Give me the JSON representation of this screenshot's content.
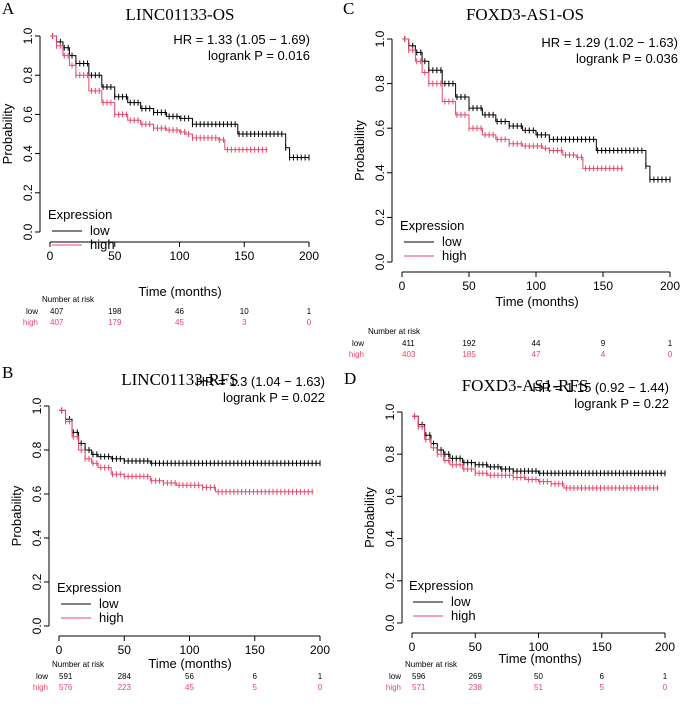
{
  "colors": {
    "low": "#000000",
    "high": "#e8466a",
    "axis": "#000000"
  },
  "chart_data": [
    {
      "panel_letter": "A",
      "type": "line",
      "title": "LINC01133-OS",
      "hr_text": "HR = 1.33 (1.05 − 1.69)",
      "p_text": "logrank P = 0.016",
      "xlabel": "Time (months)",
      "ylabel": "Probability",
      "xlim": [
        0,
        200
      ],
      "ylim": [
        0,
        1
      ],
      "xticks": [
        0,
        50,
        100,
        150,
        200
      ],
      "yticks": [
        0.0,
        0.2,
        0.4,
        0.6,
        0.8,
        1.0
      ],
      "legend_title": "Expression",
      "series": [
        {
          "name": "low",
          "color_key": "low",
          "x": [
            0,
            5,
            10,
            15,
            20,
            30,
            40,
            50,
            60,
            70,
            80,
            90,
            100,
            110,
            120,
            130,
            140,
            145,
            150,
            160,
            170,
            180,
            182,
            185,
            190,
            200
          ],
          "y": [
            1.0,
            0.97,
            0.94,
            0.9,
            0.86,
            0.8,
            0.74,
            0.69,
            0.66,
            0.63,
            0.61,
            0.59,
            0.58,
            0.55,
            0.55,
            0.55,
            0.55,
            0.5,
            0.5,
            0.5,
            0.5,
            0.5,
            0.43,
            0.38,
            0.38,
            0.38
          ]
        },
        {
          "name": "high",
          "color_key": "high",
          "x": [
            0,
            5,
            10,
            15,
            20,
            30,
            40,
            50,
            60,
            70,
            80,
            90,
            100,
            105,
            110,
            120,
            130,
            135,
            140,
            150,
            160,
            168
          ],
          "y": [
            1.0,
            0.95,
            0.9,
            0.85,
            0.8,
            0.72,
            0.66,
            0.6,
            0.57,
            0.55,
            0.53,
            0.52,
            0.51,
            0.5,
            0.48,
            0.48,
            0.47,
            0.42,
            0.42,
            0.42,
            0.42,
            0.42
          ]
        }
      ],
      "risk_label": "Number at risk",
      "risk_times": [
        0,
        50,
        100,
        150,
        200
      ],
      "risk_table": [
        {
          "group": "low",
          "color_key": "low",
          "counts": [
            "407",
            "198",
            "46",
            "10",
            "1"
          ]
        },
        {
          "group": "high",
          "color_key": "high",
          "counts": [
            "407",
            "179",
            "45",
            "3",
            "0"
          ]
        }
      ]
    },
    {
      "panel_letter": "C",
      "type": "line",
      "title": "FOXD3-AS1-OS",
      "hr_text": "HR = 1.29 (1.02 − 1.63)",
      "p_text": "logrank P = 0.036",
      "xlabel": "Time (months)",
      "ylabel": "Probability",
      "xlim": [
        0,
        200
      ],
      "ylim": [
        0,
        1
      ],
      "xticks": [
        0,
        50,
        100,
        150,
        200
      ],
      "yticks": [
        0.0,
        0.2,
        0.4,
        0.6,
        0.8,
        1.0
      ],
      "legend_title": "Expression",
      "series": [
        {
          "name": "low",
          "color_key": "low",
          "x": [
            0,
            5,
            10,
            15,
            20,
            30,
            40,
            50,
            60,
            70,
            80,
            90,
            100,
            110,
            120,
            130,
            140,
            145,
            150,
            160,
            170,
            180,
            182,
            185,
            190,
            200
          ],
          "y": [
            1.0,
            0.97,
            0.94,
            0.9,
            0.86,
            0.8,
            0.74,
            0.69,
            0.66,
            0.63,
            0.61,
            0.59,
            0.57,
            0.55,
            0.55,
            0.55,
            0.55,
            0.5,
            0.5,
            0.5,
            0.5,
            0.5,
            0.43,
            0.37,
            0.37,
            0.37
          ]
        },
        {
          "name": "high",
          "color_key": "high",
          "x": [
            0,
            5,
            10,
            15,
            20,
            30,
            40,
            50,
            60,
            70,
            80,
            90,
            100,
            105,
            110,
            120,
            130,
            135,
            140,
            150,
            160,
            165
          ],
          "y": [
            1.0,
            0.95,
            0.9,
            0.85,
            0.8,
            0.72,
            0.66,
            0.6,
            0.57,
            0.55,
            0.53,
            0.52,
            0.52,
            0.51,
            0.5,
            0.48,
            0.47,
            0.42,
            0.42,
            0.42,
            0.42,
            0.42
          ]
        }
      ],
      "risk_label": "Number at risk",
      "risk_times": [
        0,
        50,
        100,
        150,
        200
      ],
      "risk_table": [
        {
          "group": "low",
          "color_key": "low",
          "counts": [
            "411",
            "192",
            "44",
            "9",
            "1"
          ]
        },
        {
          "group": "high",
          "color_key": "high",
          "counts": [
            "403",
            "185",
            "47",
            "4",
            "0"
          ]
        }
      ]
    },
    {
      "panel_letter": "B",
      "type": "line",
      "title": "LINC01133-RFS",
      "hr_text": "HR = 1.3 (1.04 − 1.63)",
      "p_text": "logrank P = 0.022",
      "xlabel": "Time (months)",
      "ylabel": "Probability",
      "xlim": [
        0,
        200
      ],
      "ylim": [
        0,
        1
      ],
      "xticks": [
        0,
        50,
        100,
        150,
        200
      ],
      "yticks": [
        0.0,
        0.2,
        0.4,
        0.6,
        0.8,
        1.0
      ],
      "legend_title": "Expression",
      "series": [
        {
          "name": "low",
          "color_key": "low",
          "x": [
            0,
            5,
            10,
            15,
            20,
            25,
            30,
            40,
            50,
            60,
            70,
            80,
            100,
            120,
            150,
            200
          ],
          "y": [
            0.98,
            0.94,
            0.88,
            0.83,
            0.8,
            0.78,
            0.77,
            0.76,
            0.75,
            0.75,
            0.74,
            0.74,
            0.74,
            0.74,
            0.74,
            0.74
          ]
        },
        {
          "name": "high",
          "color_key": "high",
          "x": [
            0,
            5,
            10,
            15,
            20,
            25,
            30,
            40,
            50,
            60,
            70,
            80,
            90,
            100,
            110,
            120,
            150,
            195
          ],
          "y": [
            0.98,
            0.93,
            0.86,
            0.8,
            0.76,
            0.74,
            0.72,
            0.69,
            0.68,
            0.68,
            0.66,
            0.65,
            0.64,
            0.64,
            0.63,
            0.61,
            0.61,
            0.61
          ]
        }
      ],
      "risk_label": "Number at risk",
      "risk_times": [
        0,
        50,
        100,
        150,
        200
      ],
      "risk_table": [
        {
          "group": "low",
          "color_key": "low",
          "counts": [
            "591",
            "284",
            "56",
            "6",
            "1"
          ]
        },
        {
          "group": "high",
          "color_key": "high",
          "counts": [
            "576",
            "223",
            "45",
            "5",
            "0"
          ]
        }
      ]
    },
    {
      "panel_letter": "D",
      "type": "line",
      "title": "FOXD3-AS1-RFS",
      "hr_text": "HR = 1.15 (0.92 − 1.44)",
      "p_text": "logrank P = 0.22",
      "xlabel": "Time (months)",
      "ylabel": "Probability",
      "xlim": [
        0,
        200
      ],
      "ylim": [
        0,
        1
      ],
      "xticks": [
        0,
        50,
        100,
        150,
        200
      ],
      "yticks": [
        0.0,
        0.2,
        0.4,
        0.6,
        0.8,
        1.0
      ],
      "legend_title": "Expression",
      "series": [
        {
          "name": "low",
          "color_key": "low",
          "x": [
            0,
            5,
            10,
            15,
            20,
            25,
            30,
            40,
            50,
            60,
            70,
            80,
            90,
            100,
            120,
            150,
            200
          ],
          "y": [
            0.98,
            0.94,
            0.89,
            0.85,
            0.82,
            0.8,
            0.78,
            0.76,
            0.75,
            0.74,
            0.73,
            0.72,
            0.72,
            0.71,
            0.71,
            0.71,
            0.71
          ]
        },
        {
          "name": "high",
          "color_key": "high",
          "x": [
            0,
            5,
            10,
            15,
            20,
            25,
            30,
            40,
            50,
            60,
            70,
            80,
            90,
            100,
            110,
            120,
            150,
            195
          ],
          "y": [
            0.98,
            0.93,
            0.87,
            0.83,
            0.8,
            0.77,
            0.75,
            0.73,
            0.71,
            0.7,
            0.7,
            0.69,
            0.68,
            0.67,
            0.66,
            0.64,
            0.64,
            0.64
          ]
        }
      ],
      "risk_label": "Number at risk",
      "risk_times": [
        0,
        50,
        100,
        150,
        200
      ],
      "risk_table": [
        {
          "group": "low",
          "color_key": "low",
          "counts": [
            "596",
            "269",
            "50",
            "6",
            "1"
          ]
        },
        {
          "group": "high",
          "color_key": "high",
          "counts": [
            "571",
            "238",
            "51",
            "5",
            "0"
          ]
        }
      ]
    }
  ]
}
